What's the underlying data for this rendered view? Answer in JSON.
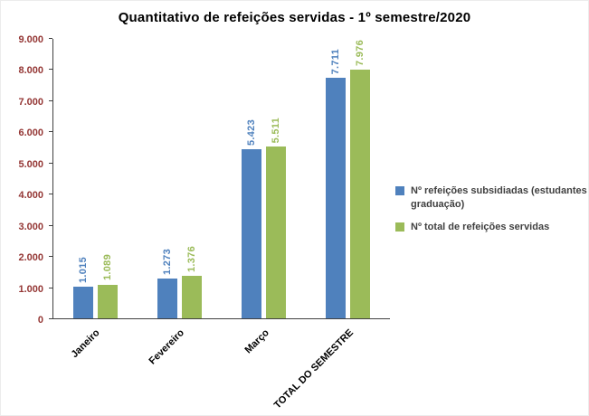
{
  "chart_data": {
    "type": "bar",
    "title": "Quantitativo de refeições servidas - 1º semestre/2020",
    "categories": [
      "Janeiro",
      "Fevereiro",
      "Março",
      "TOTAL DO SEMESTRE"
    ],
    "series": [
      {
        "name": "Nº refeições subsidiadas (estudantes graduação)",
        "values": [
          1015,
          1273,
          5423,
          7711
        ],
        "labels": [
          "1.015",
          "1.273",
          "5.423",
          "7.711"
        ],
        "color": "#4F81BD"
      },
      {
        "name": "Nº total de refeições servidas",
        "values": [
          1089,
          1376,
          5511,
          7976
        ],
        "labels": [
          "1.089",
          "1.376",
          "5.511",
          "7.976"
        ],
        "color": "#9BBB59"
      }
    ],
    "ylim": [
      0,
      9000
    ],
    "y_tick_step": 1000,
    "y_ticks": [
      "0",
      "1.000",
      "2.000",
      "3.000",
      "4.000",
      "5.000",
      "6.000",
      "7.000",
      "8.000",
      "9.000"
    ],
    "grid": false,
    "legend_position": "right",
    "xlabel": "",
    "ylabel": "",
    "axis_color": "#404040",
    "y_tick_label_color": "#943634",
    "x_tick_label_color": "#000000",
    "legend_text_color": "#404040"
  }
}
